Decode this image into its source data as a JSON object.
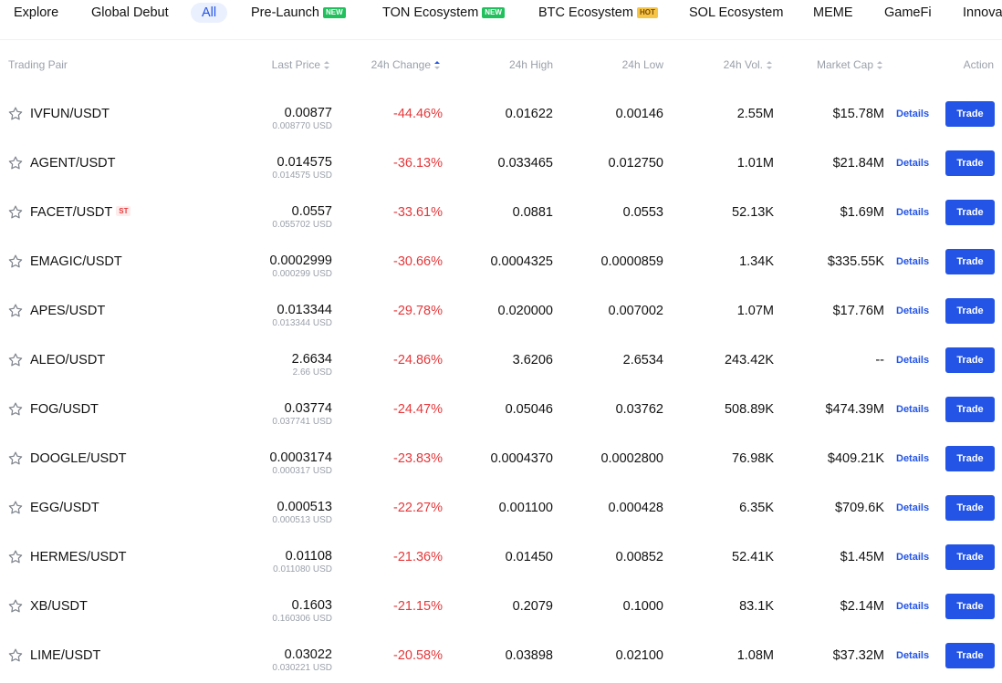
{
  "tabs": [
    {
      "label": "Explore",
      "badge": "",
      "active": false
    },
    {
      "label": "Global Debut",
      "badge": "",
      "active": false
    },
    {
      "label": "All",
      "badge": "",
      "active": true
    },
    {
      "label": "Pre-Launch",
      "badge": "NEW",
      "active": false
    },
    {
      "label": "TON Ecosystem",
      "badge": "NEW",
      "active": false
    },
    {
      "label": "BTC Ecosystem",
      "badge": "HOT",
      "active": false
    },
    {
      "label": "SOL Ecosystem",
      "badge": "",
      "active": false
    },
    {
      "label": "MEME",
      "badge": "",
      "active": false
    },
    {
      "label": "GameFi",
      "badge": "",
      "active": false
    },
    {
      "label": "Innova",
      "badge": "",
      "active": false
    }
  ],
  "table": {
    "headers": {
      "pair": "Trading Pair",
      "last_price": "Last Price",
      "change": "24h Change",
      "high": "24h High",
      "low": "24h Low",
      "volume": "24h Vol.",
      "market_cap": "Market Cap",
      "action": "Action"
    },
    "details_label": "Details",
    "trade_label": "Trade",
    "rows": [
      {
        "pair": "IVFUN/USDT",
        "tag": "",
        "price": "0.00877",
        "usd": "0.008770 USD",
        "change": "-44.46%",
        "high": "0.01622",
        "low": "0.00146",
        "volume": "2.55M",
        "market_cap": "$15.78M"
      },
      {
        "pair": "AGENT/USDT",
        "tag": "",
        "price": "0.014575",
        "usd": "0.014575 USD",
        "change": "-36.13%",
        "high": "0.033465",
        "low": "0.012750",
        "volume": "1.01M",
        "market_cap": "$21.84M"
      },
      {
        "pair": "FACET/USDT",
        "tag": "ST",
        "price": "0.0557",
        "usd": "0.055702 USD",
        "change": "-33.61%",
        "high": "0.0881",
        "low": "0.0553",
        "volume": "52.13K",
        "market_cap": "$1.69M"
      },
      {
        "pair": "EMAGIC/USDT",
        "tag": "",
        "price": "0.0002999",
        "usd": "0.000299 USD",
        "change": "-30.66%",
        "high": "0.0004325",
        "low": "0.0000859",
        "volume": "1.34K",
        "market_cap": "$335.55K"
      },
      {
        "pair": "APES/USDT",
        "tag": "",
        "price": "0.013344",
        "usd": "0.013344 USD",
        "change": "-29.78%",
        "high": "0.020000",
        "low": "0.007002",
        "volume": "1.07M",
        "market_cap": "$17.76M"
      },
      {
        "pair": "ALEO/USDT",
        "tag": "",
        "price": "2.6634",
        "usd": "2.66 USD",
        "change": "-24.86%",
        "high": "3.6206",
        "low": "2.6534",
        "volume": "243.42K",
        "market_cap": "--"
      },
      {
        "pair": "FOG/USDT",
        "tag": "",
        "price": "0.03774",
        "usd": "0.037741 USD",
        "change": "-24.47%",
        "high": "0.05046",
        "low": "0.03762",
        "volume": "508.89K",
        "market_cap": "$474.39M"
      },
      {
        "pair": "DOOGLE/USDT",
        "tag": "",
        "price": "0.0003174",
        "usd": "0.000317 USD",
        "change": "-23.83%",
        "high": "0.0004370",
        "low": "0.0002800",
        "volume": "76.98K",
        "market_cap": "$409.21K"
      },
      {
        "pair": "EGG/USDT",
        "tag": "",
        "price": "0.000513",
        "usd": "0.000513 USD",
        "change": "-22.27%",
        "high": "0.001100",
        "low": "0.000428",
        "volume": "6.35K",
        "market_cap": "$709.6K"
      },
      {
        "pair": "HERMES/USDT",
        "tag": "",
        "price": "0.01108",
        "usd": "0.011080 USD",
        "change": "-21.36%",
        "high": "0.01450",
        "low": "0.00852",
        "volume": "52.41K",
        "market_cap": "$1.45M"
      },
      {
        "pair": "XB/USDT",
        "tag": "",
        "price": "0.1603",
        "usd": "0.160306 USD",
        "change": "-21.15%",
        "high": "0.2079",
        "low": "0.1000",
        "volume": "83.1K",
        "market_cap": "$2.14M"
      },
      {
        "pair": "LIME/USDT",
        "tag": "",
        "price": "0.03022",
        "usd": "0.030221 USD",
        "change": "-20.58%",
        "high": "0.03898",
        "low": "0.02100",
        "volume": "1.08M",
        "market_cap": "$37.32M"
      }
    ]
  },
  "colors": {
    "accent": "#2354e6",
    "negative": "#e5383b",
    "muted": "#9aa0aa",
    "badge_new": "#20c05c",
    "badge_hot": "#f6c547"
  },
  "icons": {
    "favorite": "star-outline-icon",
    "sort": "sort-arrows-icon"
  }
}
